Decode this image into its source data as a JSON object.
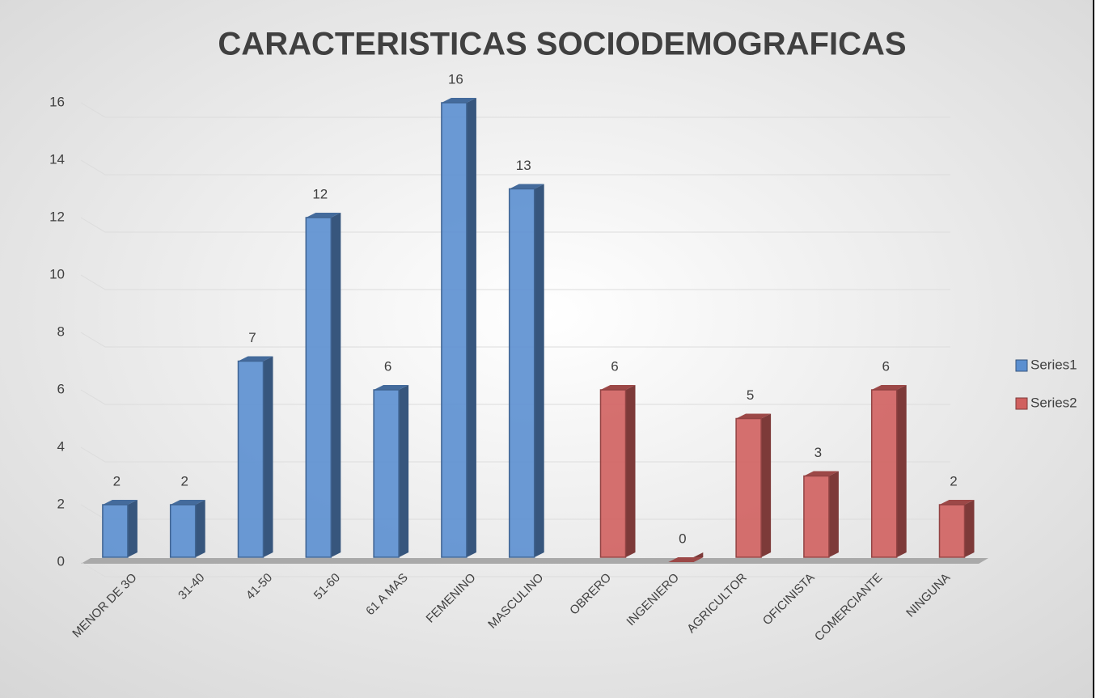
{
  "chart_data": {
    "type": "bar",
    "title": "CARACTERISTICAS SOCIODEMOGRAFICAS",
    "categories": [
      "MENOR DE 3O",
      "31-40",
      "41-50",
      "51-60",
      "61  A MAS",
      "FEMENINO",
      "MASCULINO",
      "OBRERO",
      "INGENIERO",
      "AGRICULTOR",
      "OFICINISTA",
      "COMERCIANTE",
      "NINGUNA"
    ],
    "series": [
      {
        "name": "Series1",
        "color": "#5b8fd0",
        "values": [
          2,
          2,
          7,
          12,
          6,
          16,
          13,
          null,
          null,
          null,
          null,
          null,
          null
        ]
      },
      {
        "name": "Series2",
        "color": "#d0605f",
        "values": [
          null,
          null,
          null,
          null,
          null,
          null,
          null,
          6,
          0,
          5,
          3,
          6,
          2
        ]
      }
    ],
    "ylim": [
      0,
      16
    ],
    "yticks": [
      0,
      2,
      4,
      6,
      8,
      10,
      12,
      14,
      16
    ],
    "grid": true,
    "legend": "right"
  }
}
